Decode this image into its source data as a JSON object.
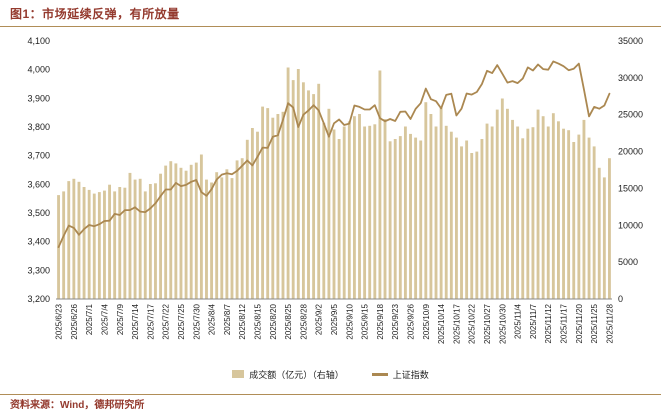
{
  "figure": {
    "title": "图1：市场延续反弹，有所放量",
    "source": "资料来源：Wind，德邦研究所"
  },
  "colors": {
    "accent": "#943a2e",
    "rule": "#b08d57",
    "bar": "#d7c69c",
    "line": "#ab8851",
    "axis_text": "#222222"
  },
  "chart_data": {
    "type": "bar",
    "subtype": "combo-bar-line",
    "title": "图1：市场延续反弹，有所放量",
    "xlabel": "",
    "ylabel_left": "上证指数",
    "ylabel_right": "成交额（亿元）",
    "legend_position": "bottom",
    "grid": false,
    "tick_every": 3,
    "left_axis": {
      "min": 3200,
      "max": 4100,
      "step": 100,
      "ticks": [
        "3,200",
        "3,300",
        "3,400",
        "3,500",
        "3,600",
        "3,700",
        "3,800",
        "3,900",
        "4,000",
        "4,100"
      ]
    },
    "right_axis": {
      "min": 0,
      "max": 35000,
      "step": 5000,
      "ticks": [
        "0",
        "5000",
        "10000",
        "15000",
        "20000",
        "25000",
        "30000",
        "35000"
      ]
    },
    "x_tick_labels": [
      "2025/6/23",
      "2025/6/26",
      "2025/7/1",
      "2025/7/4",
      "2025/7/9",
      "2025/7/14",
      "2025/7/17",
      "2025/7/22",
      "2025/7/25",
      "2025/7/30",
      "2025/8/4",
      "2025/8/7",
      "2025/8/12",
      "2025/8/15",
      "2025/8/20",
      "2025/8/25",
      "2025/8/28",
      "2025/9/2",
      "2025/9/5",
      "2025/9/10",
      "2025/9/15",
      "2025/9/18",
      "2025/9/23",
      "2025/9/26",
      "2025/10/9",
      "2025/10/14",
      "2025/10/17",
      "2025/10/22",
      "2025/10/27",
      "2025/10/30",
      "2025/11/4",
      "2025/11/7",
      "2025/11/12",
      "2025/11/17",
      "2025/11/20",
      "2025/11/25",
      "2025/11/28"
    ],
    "categories": [
      "2025/6/23",
      "2025/6/24",
      "2025/6/25",
      "2025/6/26",
      "2025/6/27",
      "2025/6/30",
      "2025/7/1",
      "2025/7/2",
      "2025/7/3",
      "2025/7/4",
      "2025/7/7",
      "2025/7/8",
      "2025/7/9",
      "2025/7/10",
      "2025/7/11",
      "2025/7/14",
      "2025/7/15",
      "2025/7/16",
      "2025/7/17",
      "2025/7/18",
      "2025/7/21",
      "2025/7/22",
      "2025/7/23",
      "2025/7/24",
      "2025/7/25",
      "2025/7/28",
      "2025/7/29",
      "2025/7/30",
      "2025/7/31",
      "2025/8/1",
      "2025/8/4",
      "2025/8/5",
      "2025/8/6",
      "2025/8/7",
      "2025/8/8",
      "2025/8/11",
      "2025/8/12",
      "2025/8/13",
      "2025/8/14",
      "2025/8/15",
      "2025/8/18",
      "2025/8/19",
      "2025/8/20",
      "2025/8/21",
      "2025/8/22",
      "2025/8/25",
      "2025/8/26",
      "2025/8/27",
      "2025/8/28",
      "2025/8/29",
      "2025/9/1",
      "2025/9/2",
      "2025/9/3",
      "2025/9/4",
      "2025/9/5",
      "2025/9/8",
      "2025/9/9",
      "2025/9/10",
      "2025/9/11",
      "2025/9/12",
      "2025/9/15",
      "2025/9/16",
      "2025/9/17",
      "2025/9/18",
      "2025/9/19",
      "2025/9/22",
      "2025/9/23",
      "2025/9/24",
      "2025/9/25",
      "2025/9/26",
      "2025/9/29",
      "2025/9/30",
      "2025/10/9",
      "2025/10/10",
      "2025/10/13",
      "2025/10/14",
      "2025/10/15",
      "2025/10/16",
      "2025/10/17",
      "2025/10/20",
      "2025/10/21",
      "2025/10/22",
      "2025/10/23",
      "2025/10/24",
      "2025/10/27",
      "2025/10/28",
      "2025/10/29",
      "2025/10/30",
      "2025/10/31",
      "2025/11/3",
      "2025/11/4",
      "2025/11/5",
      "2025/11/6",
      "2025/11/7",
      "2025/11/10",
      "2025/11/11",
      "2025/11/12",
      "2025/11/13",
      "2025/11/14",
      "2025/11/17",
      "2025/11/18",
      "2025/11/19",
      "2025/11/20",
      "2025/11/21",
      "2025/11/24",
      "2025/11/25",
      "2025/11/26",
      "2025/11/27",
      "2025/11/28"
    ],
    "series": [
      {
        "name": "成交额（亿元）（右轴）",
        "type": "bar",
        "axis": "right",
        "values": [
          14100,
          14600,
          16000,
          16300,
          15900,
          15200,
          14800,
          14300,
          14500,
          14700,
          15500,
          14600,
          15200,
          15100,
          17100,
          16200,
          16300,
          14600,
          15600,
          15700,
          17000,
          18100,
          18700,
          18400,
          17800,
          17400,
          18200,
          18500,
          19600,
          16200,
          15800,
          17200,
          16500,
          17600,
          16400,
          18800,
          19100,
          21600,
          23200,
          22700,
          26100,
          25900,
          24600,
          25100,
          25400,
          31400,
          29700,
          31200,
          29400,
          28300,
          27800,
          29200,
          23900,
          25800,
          23000,
          21700,
          23400,
          24100,
          24800,
          25100,
          23400,
          23500,
          23700,
          31000,
          24400,
          21400,
          21700,
          22100,
          23400,
          22400,
          21900,
          21500,
          26700,
          25100,
          23400,
          26100,
          23500,
          22700,
          21900,
          20700,
          21500,
          19800,
          20000,
          21700,
          23800,
          23400,
          25700,
          27200,
          25800,
          24300,
          23400,
          21800,
          23100,
          23300,
          25700,
          24800,
          23400,
          25200,
          24100,
          23100,
          22900,
          21300,
          22300,
          24300,
          21900,
          20700,
          17800,
          16500,
          19100
        ]
      },
      {
        "name": "上证指数",
        "type": "line",
        "axis": "left",
        "values": [
          3381,
          3420,
          3456,
          3448,
          3424,
          3444,
          3458,
          3454,
          3461,
          3472,
          3473,
          3497,
          3493,
          3510,
          3510,
          3520,
          3505,
          3503,
          3516,
          3534,
          3559,
          3582,
          3582,
          3605,
          3594,
          3598,
          3609,
          3615,
          3573,
          3560,
          3583,
          3617,
          3634,
          3639,
          3635,
          3647,
          3665,
          3683,
          3666,
          3696,
          3728,
          3727,
          3766,
          3771,
          3825,
          3883,
          3868,
          3800,
          3843,
          3858,
          3876,
          3858,
          3813,
          3766,
          3813,
          3826,
          3807,
          3812,
          3875,
          3870,
          3861,
          3861,
          3876,
          3831,
          3820,
          3828,
          3821,
          3853,
          3854,
          3828,
          3863,
          3883,
          3934,
          3897,
          3890,
          3865,
          3912,
          3916,
          3840,
          3864,
          3917,
          3913,
          3922,
          3950,
          3996,
          3988,
          4016,
          3986,
          3955,
          3960,
          3953,
          3969,
          4008,
          3997,
          4018,
          4002,
          4000,
          4029,
          4021,
          4012,
          3998,
          4003,
          4021,
          3931,
          3837,
          3870,
          3864,
          3875,
          3916
        ]
      }
    ]
  }
}
